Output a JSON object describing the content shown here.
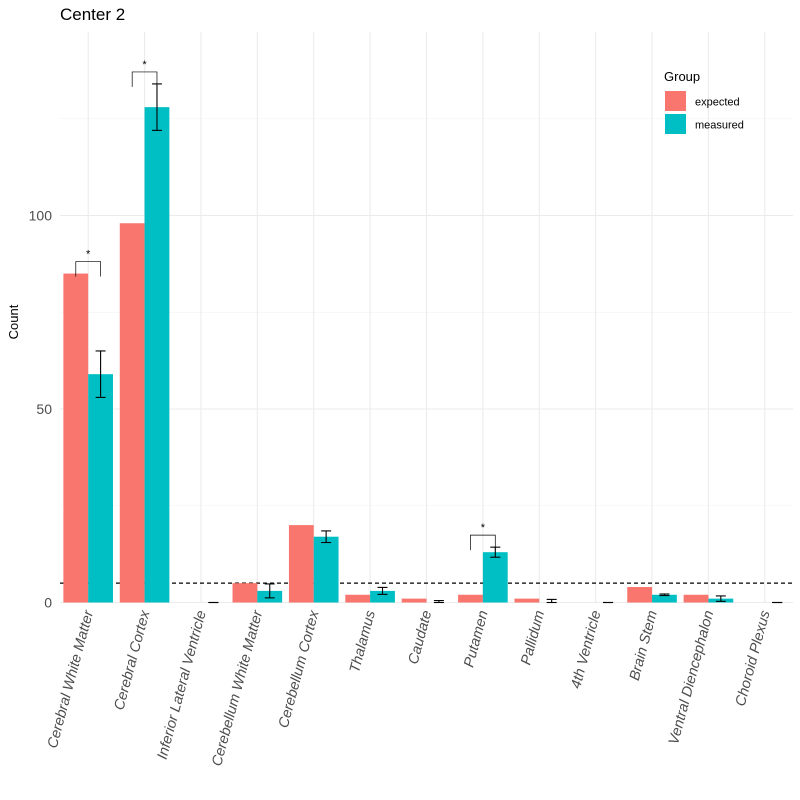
{
  "chart_data": {
    "type": "bar",
    "title": "Center 2",
    "xlabel": "",
    "ylabel": "Count",
    "ylim": [
      0,
      143
    ],
    "yticks": [
      0,
      50,
      100
    ],
    "grid": true,
    "legend": {
      "title": "Group",
      "position": "top-right"
    },
    "categories": [
      "Cerebral White Matter",
      "Cerebral Cortex",
      "Inferior Lateral Ventricle",
      "Cerebellum White Matter",
      "Cerebellum Cortex",
      "Thalamus",
      "Caudate",
      "Putamen",
      "Pallidum",
      "4th Ventricle",
      "Brain Stem",
      "Ventral Diencephalon",
      "Choroid Plexus"
    ],
    "series": [
      {
        "name": "expected",
        "color": "#F8766D",
        "values": [
          85,
          98,
          0,
          5,
          20,
          2,
          1,
          2,
          1,
          0,
          4,
          2,
          0
        ]
      },
      {
        "name": "measured",
        "color": "#00BFC4",
        "values": [
          59,
          128,
          0,
          3,
          17,
          3,
          0,
          13,
          0,
          0,
          2,
          1,
          0
        ],
        "error": [
          6,
          6,
          0,
          1.8,
          1.5,
          0.9,
          0.5,
          1.3,
          0.8,
          0,
          0.2,
          0.7,
          0
        ]
      }
    ],
    "reference_line": {
      "y": 5,
      "style": "dashed"
    },
    "significance": [
      {
        "category": "Cerebral White Matter",
        "label": "*"
      },
      {
        "category": "Cerebral Cortex",
        "label": "*"
      },
      {
        "category": "Putamen",
        "label": "*"
      }
    ]
  }
}
